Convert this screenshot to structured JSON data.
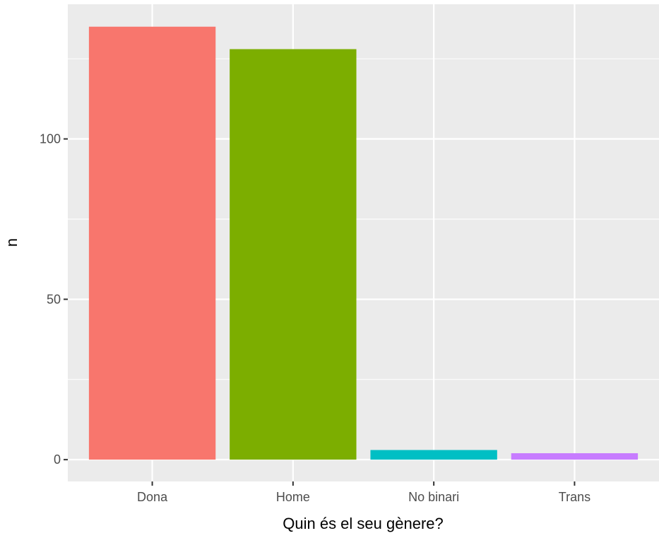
{
  "chart_data": {
    "type": "bar",
    "title": "",
    "xlabel": "Quin és el seu gènere?",
    "ylabel": "n",
    "categories": [
      "Dona",
      "Home",
      "No binari",
      "Trans"
    ],
    "values": [
      135,
      128,
      3,
      2
    ],
    "ylim": [
      -6.8,
      142
    ],
    "yticks": [
      0,
      50,
      100
    ],
    "grid": true,
    "legend": "none",
    "colors": [
      "#F8766D",
      "#7CAE00",
      "#00BFC4",
      "#C77CFF"
    ],
    "panel_background": "#EBEBEB",
    "grid_color": "#FFFFFF"
  }
}
